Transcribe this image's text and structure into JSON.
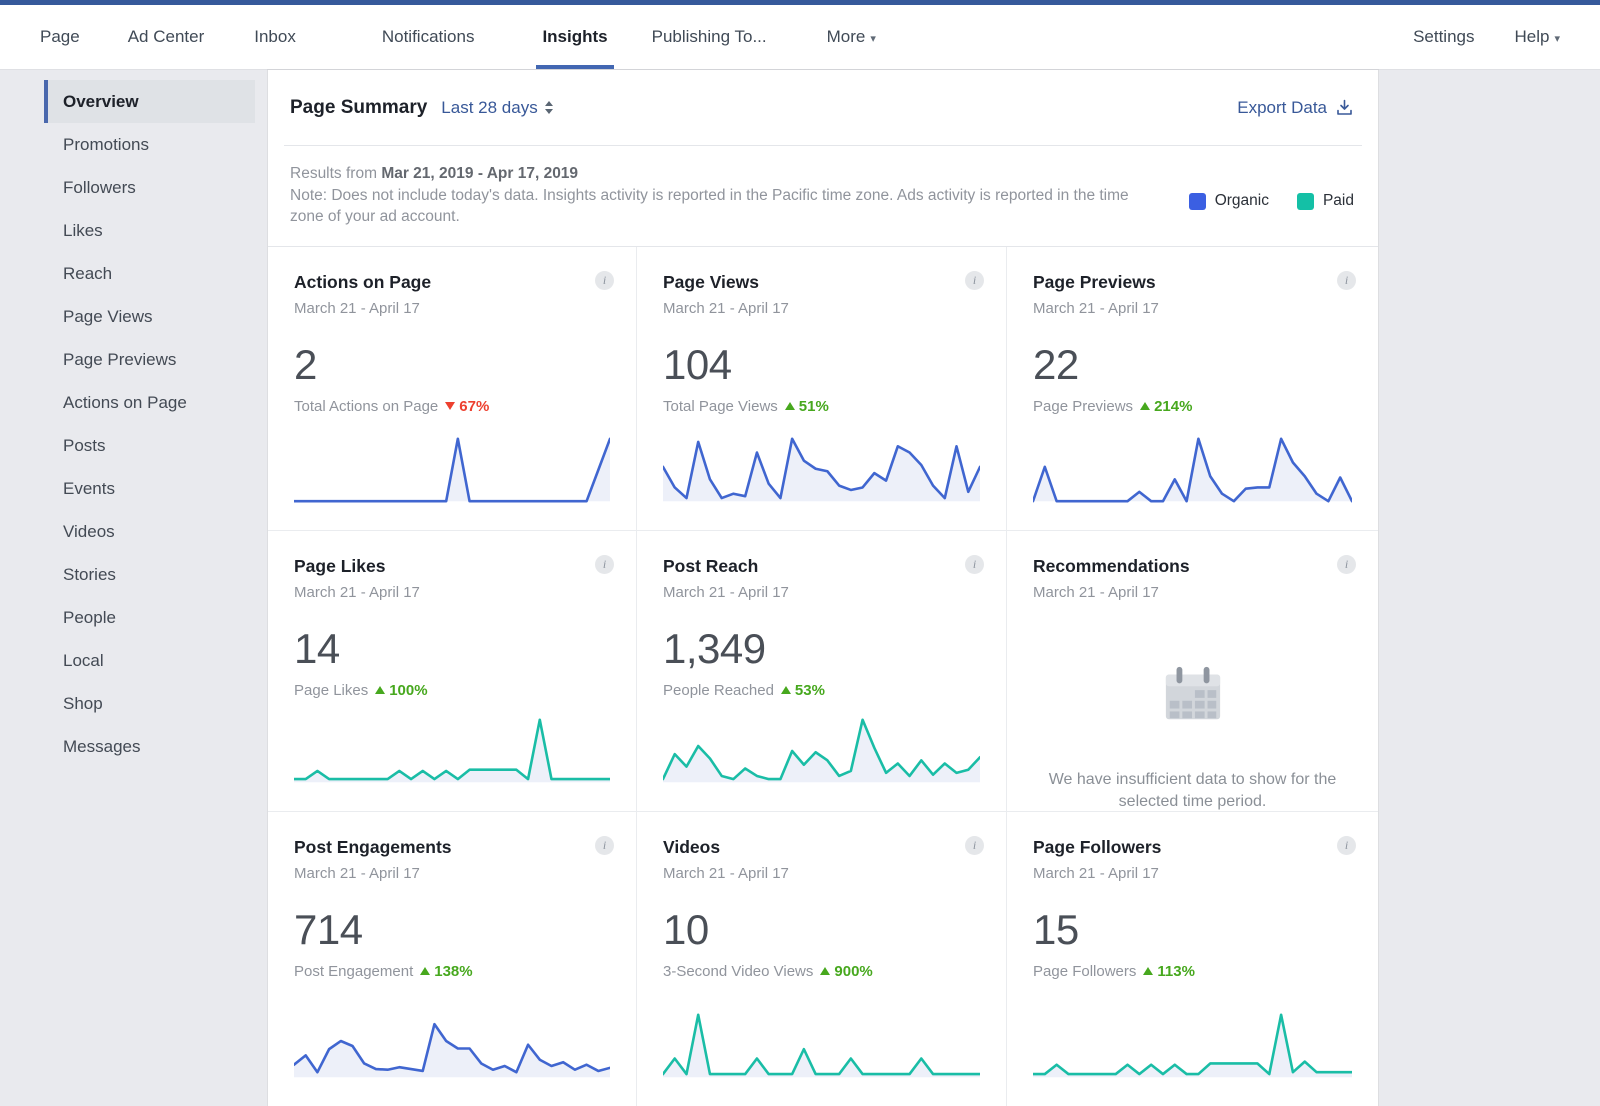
{
  "top_nav": {
    "items": [
      {
        "label": "Page"
      },
      {
        "label": "Ad Center"
      },
      {
        "label": "Inbox"
      },
      {
        "label": "Notifications"
      },
      {
        "label": "Insights",
        "active": true
      },
      {
        "label": "Publishing To..."
      },
      {
        "label": "More",
        "caret": "▾"
      }
    ],
    "right_items": [
      {
        "label": "Settings"
      },
      {
        "label": "Help",
        "caret": "▾"
      }
    ]
  },
  "sidebar": {
    "active_index": 0,
    "items": [
      "Overview",
      "Promotions",
      "Followers",
      "Likes",
      "Reach",
      "Page Views",
      "Page Previews",
      "Actions on Page",
      "Posts",
      "Events",
      "Videos",
      "Stories",
      "People",
      "Local",
      "Shop",
      "Messages"
    ]
  },
  "summary": {
    "title": "Page Summary",
    "range_label": "Last 28 days",
    "export_label": "Export Data"
  },
  "note": {
    "results_prefix": "Results from ",
    "results_dates": "Mar 21, 2019 - Apr 17, 2019",
    "body": "Note: Does not include today's data. Insights activity is reported in the Pacific time zone. Ads activity is reported in the time zone of your ad account."
  },
  "legend": {
    "organic_label": "Organic",
    "paid_label": "Paid"
  },
  "icons": {
    "info_glyph": "i"
  },
  "colors": {
    "top_strip": "#36599b",
    "active_tab_underline": "#4267b2",
    "organic": "#3b5fe2",
    "paid": "#14c0a6",
    "line_blue": "#4066d0",
    "line_teal": "#1abda6",
    "spark_fill": "#edf0f9",
    "up_green": "#47a81e",
    "down_red": "#ed402f"
  },
  "cards": [
    {
      "title": "Actions on Page",
      "date_range": "March 21 - April 17",
      "value": "2",
      "label": "Total Actions on Page",
      "delta": {
        "direction": "down",
        "value": "67%"
      },
      "color": "blue",
      "spark": [
        0,
        0,
        0,
        0,
        0,
        0,
        0,
        0,
        0,
        0,
        0,
        0,
        0,
        0,
        100,
        0,
        0,
        0,
        0,
        0,
        0,
        0,
        0,
        0,
        0,
        0,
        50,
        100
      ]
    },
    {
      "title": "Page Views",
      "date_range": "March 21 - April 17",
      "value": "104",
      "label": "Total Page Views",
      "delta": {
        "direction": "up",
        "value": "51%"
      },
      "color": "blue",
      "spark": [
        55,
        22,
        5,
        95,
        35,
        5,
        12,
        8,
        78,
        28,
        5,
        100,
        65,
        52,
        48,
        25,
        18,
        22,
        45,
        33,
        88,
        78,
        58,
        25,
        5,
        88,
        15,
        55
      ]
    },
    {
      "title": "Page Previews",
      "date_range": "March 21 - April 17",
      "value": "22",
      "label": "Page Previews",
      "delta": {
        "direction": "up",
        "value": "214%"
      },
      "color": "blue",
      "spark": [
        0,
        55,
        0,
        0,
        0,
        0,
        0,
        0,
        0,
        15,
        0,
        0,
        35,
        0,
        100,
        40,
        12,
        0,
        20,
        22,
        22,
        100,
        62,
        40,
        12,
        0,
        38,
        0
      ]
    },
    {
      "title": "Page Likes",
      "date_range": "March 21 - April 17",
      "value": "14",
      "label": "Page Likes",
      "delta": {
        "direction": "up",
        "value": "100%"
      },
      "color": "teal",
      "spark": [
        5,
        5,
        18,
        5,
        5,
        5,
        5,
        5,
        5,
        18,
        5,
        18,
        5,
        18,
        5,
        20,
        20,
        20,
        20,
        20,
        5,
        100,
        5,
        5,
        5,
        5,
        5,
        5
      ]
    },
    {
      "title": "Post Reach",
      "date_range": "March 21 - April 17",
      "value": "1,349",
      "label": "People Reached",
      "delta": {
        "direction": "up",
        "value": "53%"
      },
      "color": "teal",
      "spark": [
        5,
        45,
        25,
        58,
        38,
        10,
        5,
        22,
        10,
        5,
        5,
        50,
        28,
        48,
        35,
        10,
        18,
        100,
        55,
        15,
        30,
        10,
        35,
        12,
        30,
        15,
        20,
        40
      ]
    },
    {
      "title": "Recommendations",
      "date_range": "March 21 - April 17",
      "empty_message": "We have insufficient data to show for the selected time period."
    },
    {
      "title": "Post Engagements",
      "date_range": "March 21 - April 17",
      "value": "714",
      "label": "Post Engagement",
      "delta": {
        "direction": "up",
        "value": "138%"
      },
      "color": "blue",
      "spark": [
        20,
        35,
        8,
        45,
        58,
        50,
        22,
        13,
        12,
        16,
        13,
        10,
        85,
        58,
        46,
        46,
        22,
        12,
        18,
        8,
        52,
        28,
        18,
        24,
        12,
        20,
        10,
        15
      ]
    },
    {
      "title": "Videos",
      "date_range": "March 21 - April 17",
      "value": "10",
      "label": "3-Second Video Views",
      "delta": {
        "direction": "up",
        "value": "900%"
      },
      "color": "teal",
      "spark": [
        5,
        30,
        5,
        100,
        5,
        5,
        5,
        5,
        30,
        5,
        5,
        5,
        45,
        5,
        5,
        5,
        30,
        5,
        5,
        5,
        5,
        5,
        30,
        5,
        5,
        5,
        5,
        5
      ]
    },
    {
      "title": "Page Followers",
      "date_range": "March 21 - April 17",
      "value": "15",
      "label": "Page Followers",
      "delta": {
        "direction": "up",
        "value": "113%"
      },
      "color": "teal",
      "spark": [
        5,
        5,
        20,
        5,
        5,
        5,
        5,
        5,
        20,
        5,
        20,
        5,
        20,
        5,
        5,
        22,
        22,
        22,
        22,
        22,
        5,
        100,
        8,
        25,
        8,
        8,
        8,
        8
      ]
    }
  ]
}
